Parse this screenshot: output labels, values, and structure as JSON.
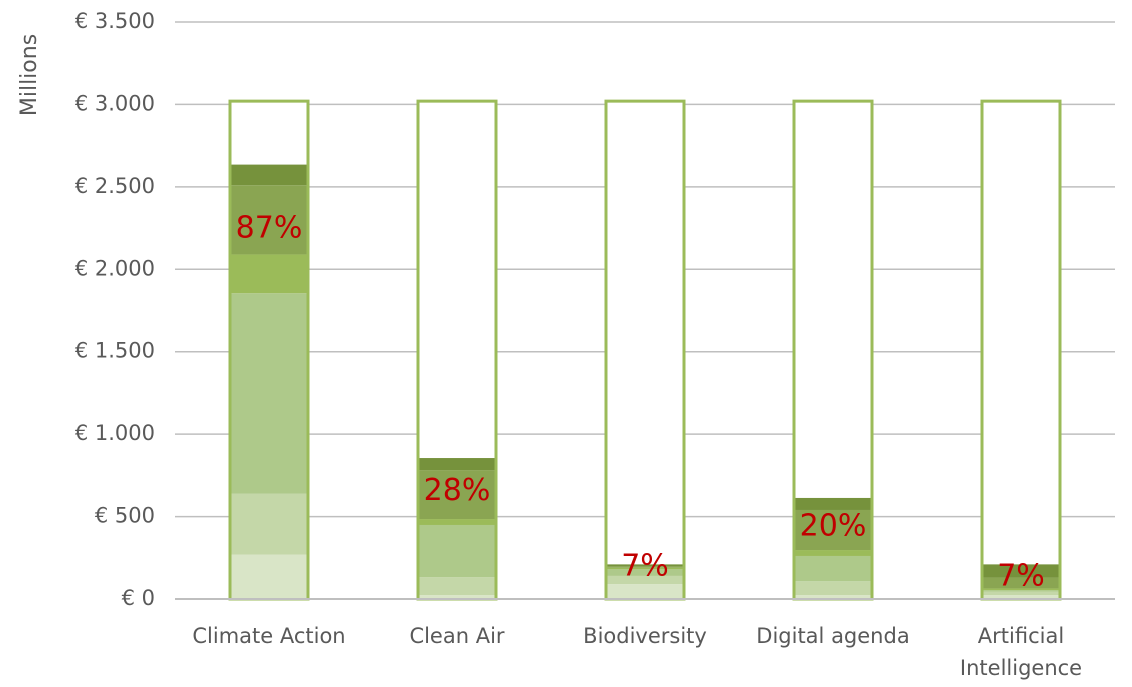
{
  "chart_data": {
    "type": "stacked_bar",
    "y_label": "Millions",
    "categories": [
      "Climate Action",
      "Clean Air",
      "Biodiversity",
      "Digital agenda",
      "Artificial Intelligence"
    ],
    "series": [
      {
        "color": "#d9e5c7",
        "values": [
          270,
          24,
          90,
          24,
          24
        ]
      },
      {
        "color": "#c4d7a8",
        "values": [
          370,
          109,
          50,
          85,
          20
        ]
      },
      {
        "color": "#aec98a",
        "values": [
          1215,
          316,
          40,
          152,
          10
        ]
      },
      {
        "color": "#9bbb59",
        "values": [
          235,
          36,
          10,
          36,
          10
        ]
      },
      {
        "color": "#8aa552",
        "values": [
          420,
          297,
          10,
          243,
          66
        ]
      },
      {
        "color": "#76923c",
        "values": [
          125,
          73,
          10,
          73,
          80
        ]
      }
    ],
    "outline": {
      "color": "#9bbb59",
      "values": [
        3020,
        3020,
        3020,
        3020,
        3020
      ]
    },
    "percent_labels": {
      "color": "#c00000",
      "values": [
        87,
        28,
        7,
        20,
        7
      ],
      "value_labels": [
        "87%",
        "28%",
        "7%",
        "20%",
        "7%"
      ]
    },
    "ylim": [
      0,
      3500
    ],
    "yticks": [
      {
        "value": 0,
        "label": "€ 0"
      },
      {
        "value": 500,
        "label": "€ 500"
      },
      {
        "value": 1000,
        "label": "€ 1.000"
      },
      {
        "value": 1500,
        "label": "€ 1.500"
      },
      {
        "value": 2000,
        "label": "€ 2.000"
      },
      {
        "value": 2500,
        "label": "€ 2.500"
      },
      {
        "value": 3000,
        "label": "€ 3.000"
      },
      {
        "value": 3500,
        "label": "€ 3.500"
      }
    ],
    "grid": true
  }
}
